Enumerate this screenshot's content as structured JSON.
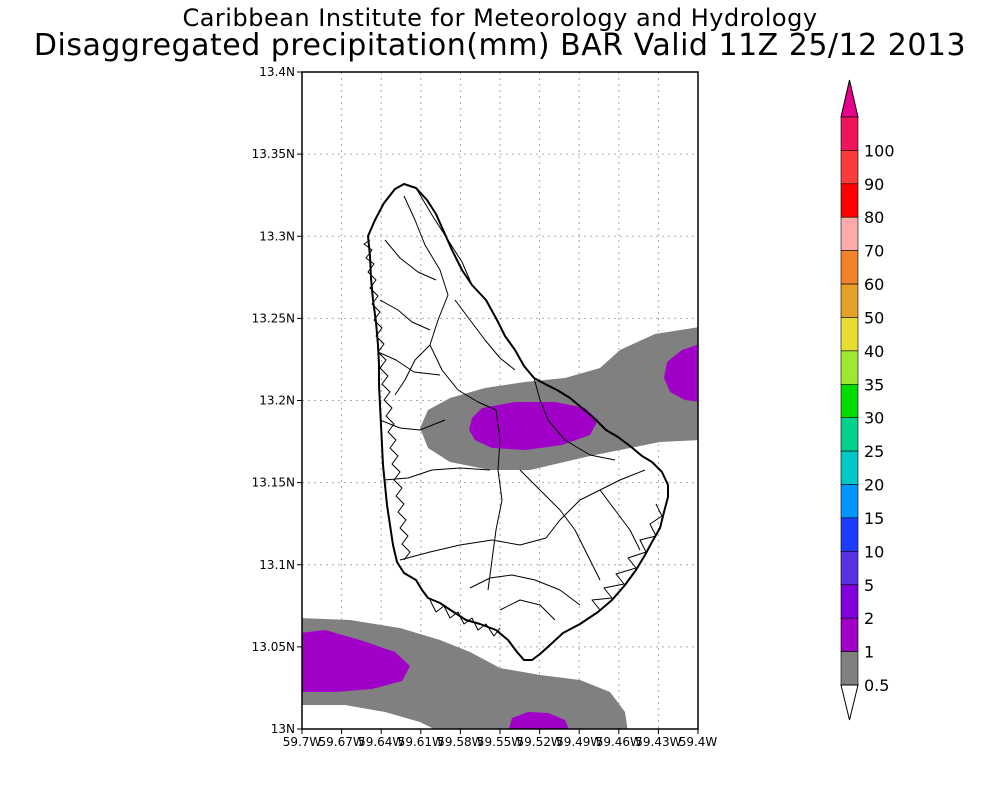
{
  "title": {
    "line1": "Caribbean Institute for Meteorology and Hydrology",
    "line2": "Disaggregated precipitation(mm) BAR Valid 11Z 25/12 2013"
  },
  "map": {
    "lon_range": [
      -59.7,
      -59.4
    ],
    "lat_range": [
      13.0,
      13.4
    ],
    "lat_ticks": [
      {
        "value": 13.4,
        "label": "13.4N"
      },
      {
        "value": 13.35,
        "label": "13.35N"
      },
      {
        "value": 13.3,
        "label": "13.3N"
      },
      {
        "value": 13.25,
        "label": "13.25N"
      },
      {
        "value": 13.2,
        "label": "13.2N"
      },
      {
        "value": 13.15,
        "label": "13.15N"
      },
      {
        "value": 13.1,
        "label": "13.1N"
      },
      {
        "value": 13.05,
        "label": "13.05N"
      },
      {
        "value": 13.0,
        "label": "13N"
      }
    ],
    "lon_ticks": [
      {
        "value": -59.7,
        "label": "59.7W"
      },
      {
        "value": -59.67,
        "label": "59.67W"
      },
      {
        "value": -59.64,
        "label": "59.64W"
      },
      {
        "value": -59.61,
        "label": "59.61W"
      },
      {
        "value": -59.58,
        "label": "59.58W"
      },
      {
        "value": -59.55,
        "label": "59.55W"
      },
      {
        "value": -59.52,
        "label": "59.52W"
      },
      {
        "value": -59.49,
        "label": "59.49W"
      },
      {
        "value": -59.46,
        "label": "59.46W"
      },
      {
        "value": -59.43,
        "label": "59.43W"
      },
      {
        "value": -59.4,
        "label": "59.4W"
      }
    ],
    "grid": true,
    "region": "Barbados",
    "precip_areas": [
      {
        "level": "0.5-1",
        "color": "#808080",
        "desc": "northeast band"
      },
      {
        "level": "1-2",
        "color": "#a000c8",
        "desc": "central north"
      },
      {
        "level": "1-2",
        "color": "#a000c8",
        "desc": "east edge"
      },
      {
        "level": "0.5-1",
        "color": "#808080",
        "desc": "southwest band"
      },
      {
        "level": "1-2",
        "color": "#a000c8",
        "desc": "southwest"
      },
      {
        "level": "1-2",
        "color": "#a000c8",
        "desc": "south edge"
      }
    ]
  },
  "colorbar": {
    "upper_arrow_color": "#e6008c",
    "lower_arrow_color": "#ffffff",
    "bins": [
      {
        "label": "100",
        "color": "#f0145a"
      },
      {
        "label": "90",
        "color": "#fa3c3c"
      },
      {
        "label": "80",
        "color": "#ff0000"
      },
      {
        "label": "70",
        "color": "#ffaaaa"
      },
      {
        "label": "60",
        "color": "#f08228"
      },
      {
        "label": "50",
        "color": "#e6a028"
      },
      {
        "label": "40",
        "color": "#e6dc32"
      },
      {
        "label": "35",
        "color": "#a0e632"
      },
      {
        "label": "30",
        "color": "#00dc00"
      },
      {
        "label": "25",
        "color": "#00d28c"
      },
      {
        "label": "20",
        "color": "#00c8c8"
      },
      {
        "label": "15",
        "color": "#0096ff"
      },
      {
        "label": "10",
        "color": "#1e3cff"
      },
      {
        "label": "5",
        "color": "#5a32e6"
      },
      {
        "label": "2",
        "color": "#8200dc"
      },
      {
        "label": "1",
        "color": "#a000c8"
      },
      {
        "label": "0.5",
        "color": "#808080"
      }
    ]
  }
}
